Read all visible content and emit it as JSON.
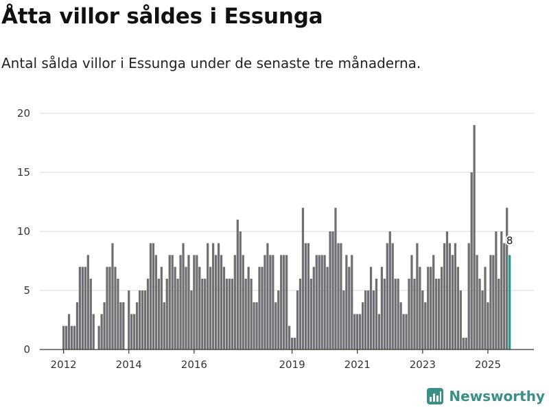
{
  "title": "Åtta villor såldes i Essunga",
  "subtitle": "Antal sålda villor i Essunga under de senaste tre månaderna.",
  "brand": {
    "name": "Newsworthy",
    "color": "#3a8f86"
  },
  "colors": {
    "bar": "#6f6e73",
    "highlight": "#1a9e92",
    "grid": "#d9d9d9",
    "axis": "#333333"
  },
  "chart_data": {
    "type": "bar",
    "title": "Åtta villor såldes i Essunga",
    "subtitle": "Antal sålda villor i Essunga under de senaste tre månaderna.",
    "xlabel": "",
    "ylabel": "",
    "ylim": [
      0,
      20
    ],
    "yticks": [
      0,
      5,
      10,
      15,
      20
    ],
    "grid": true,
    "start": "2012-01",
    "xticks": [
      {
        "label": "2012",
        "index": 0
      },
      {
        "label": "2014",
        "index": 24
      },
      {
        "label": "2016",
        "index": 48
      },
      {
        "label": "2019",
        "index": 84
      },
      {
        "label": "2021",
        "index": 108
      },
      {
        "label": "2023",
        "index": 132
      },
      {
        "label": "2025",
        "index": 156
      }
    ],
    "values": [
      2,
      2,
      3,
      2,
      2,
      4,
      7,
      7,
      7,
      8,
      6,
      3,
      0,
      2,
      3,
      4,
      7,
      7,
      9,
      7,
      6,
      4,
      4,
      0,
      5,
      3,
      3,
      4,
      5,
      5,
      5,
      6,
      9,
      9,
      8,
      6,
      7,
      4,
      6,
      8,
      8,
      7,
      6,
      8,
      9,
      7,
      8,
      5,
      8,
      8,
      7,
      6,
      6,
      9,
      7,
      9,
      8,
      9,
      8,
      7,
      6,
      6,
      6,
      8,
      11,
      10,
      8,
      6,
      7,
      6,
      4,
      4,
      7,
      7,
      8,
      9,
      8,
      8,
      4,
      5,
      8,
      8,
      8,
      2,
      1,
      1,
      5,
      6,
      12,
      9,
      9,
      6,
      7,
      8,
      8,
      8,
      8,
      7,
      10,
      10,
      12,
      9,
      9,
      5,
      8,
      7,
      8,
      3,
      3,
      3,
      4,
      5,
      5,
      7,
      5,
      6,
      3,
      7,
      6,
      9,
      10,
      9,
      6,
      6,
      4,
      3,
      3,
      6,
      8,
      6,
      9,
      7,
      5,
      4,
      7,
      7,
      8,
      6,
      6,
      7,
      9,
      10,
      9,
      8,
      9,
      7,
      5,
      1,
      1,
      9,
      15,
      19,
      8,
      6,
      5,
      7,
      4,
      8,
      8,
      10,
      6,
      10,
      9,
      12,
      8
    ],
    "highlight_index": 164,
    "data_label": {
      "index": 164,
      "text": "8"
    }
  }
}
